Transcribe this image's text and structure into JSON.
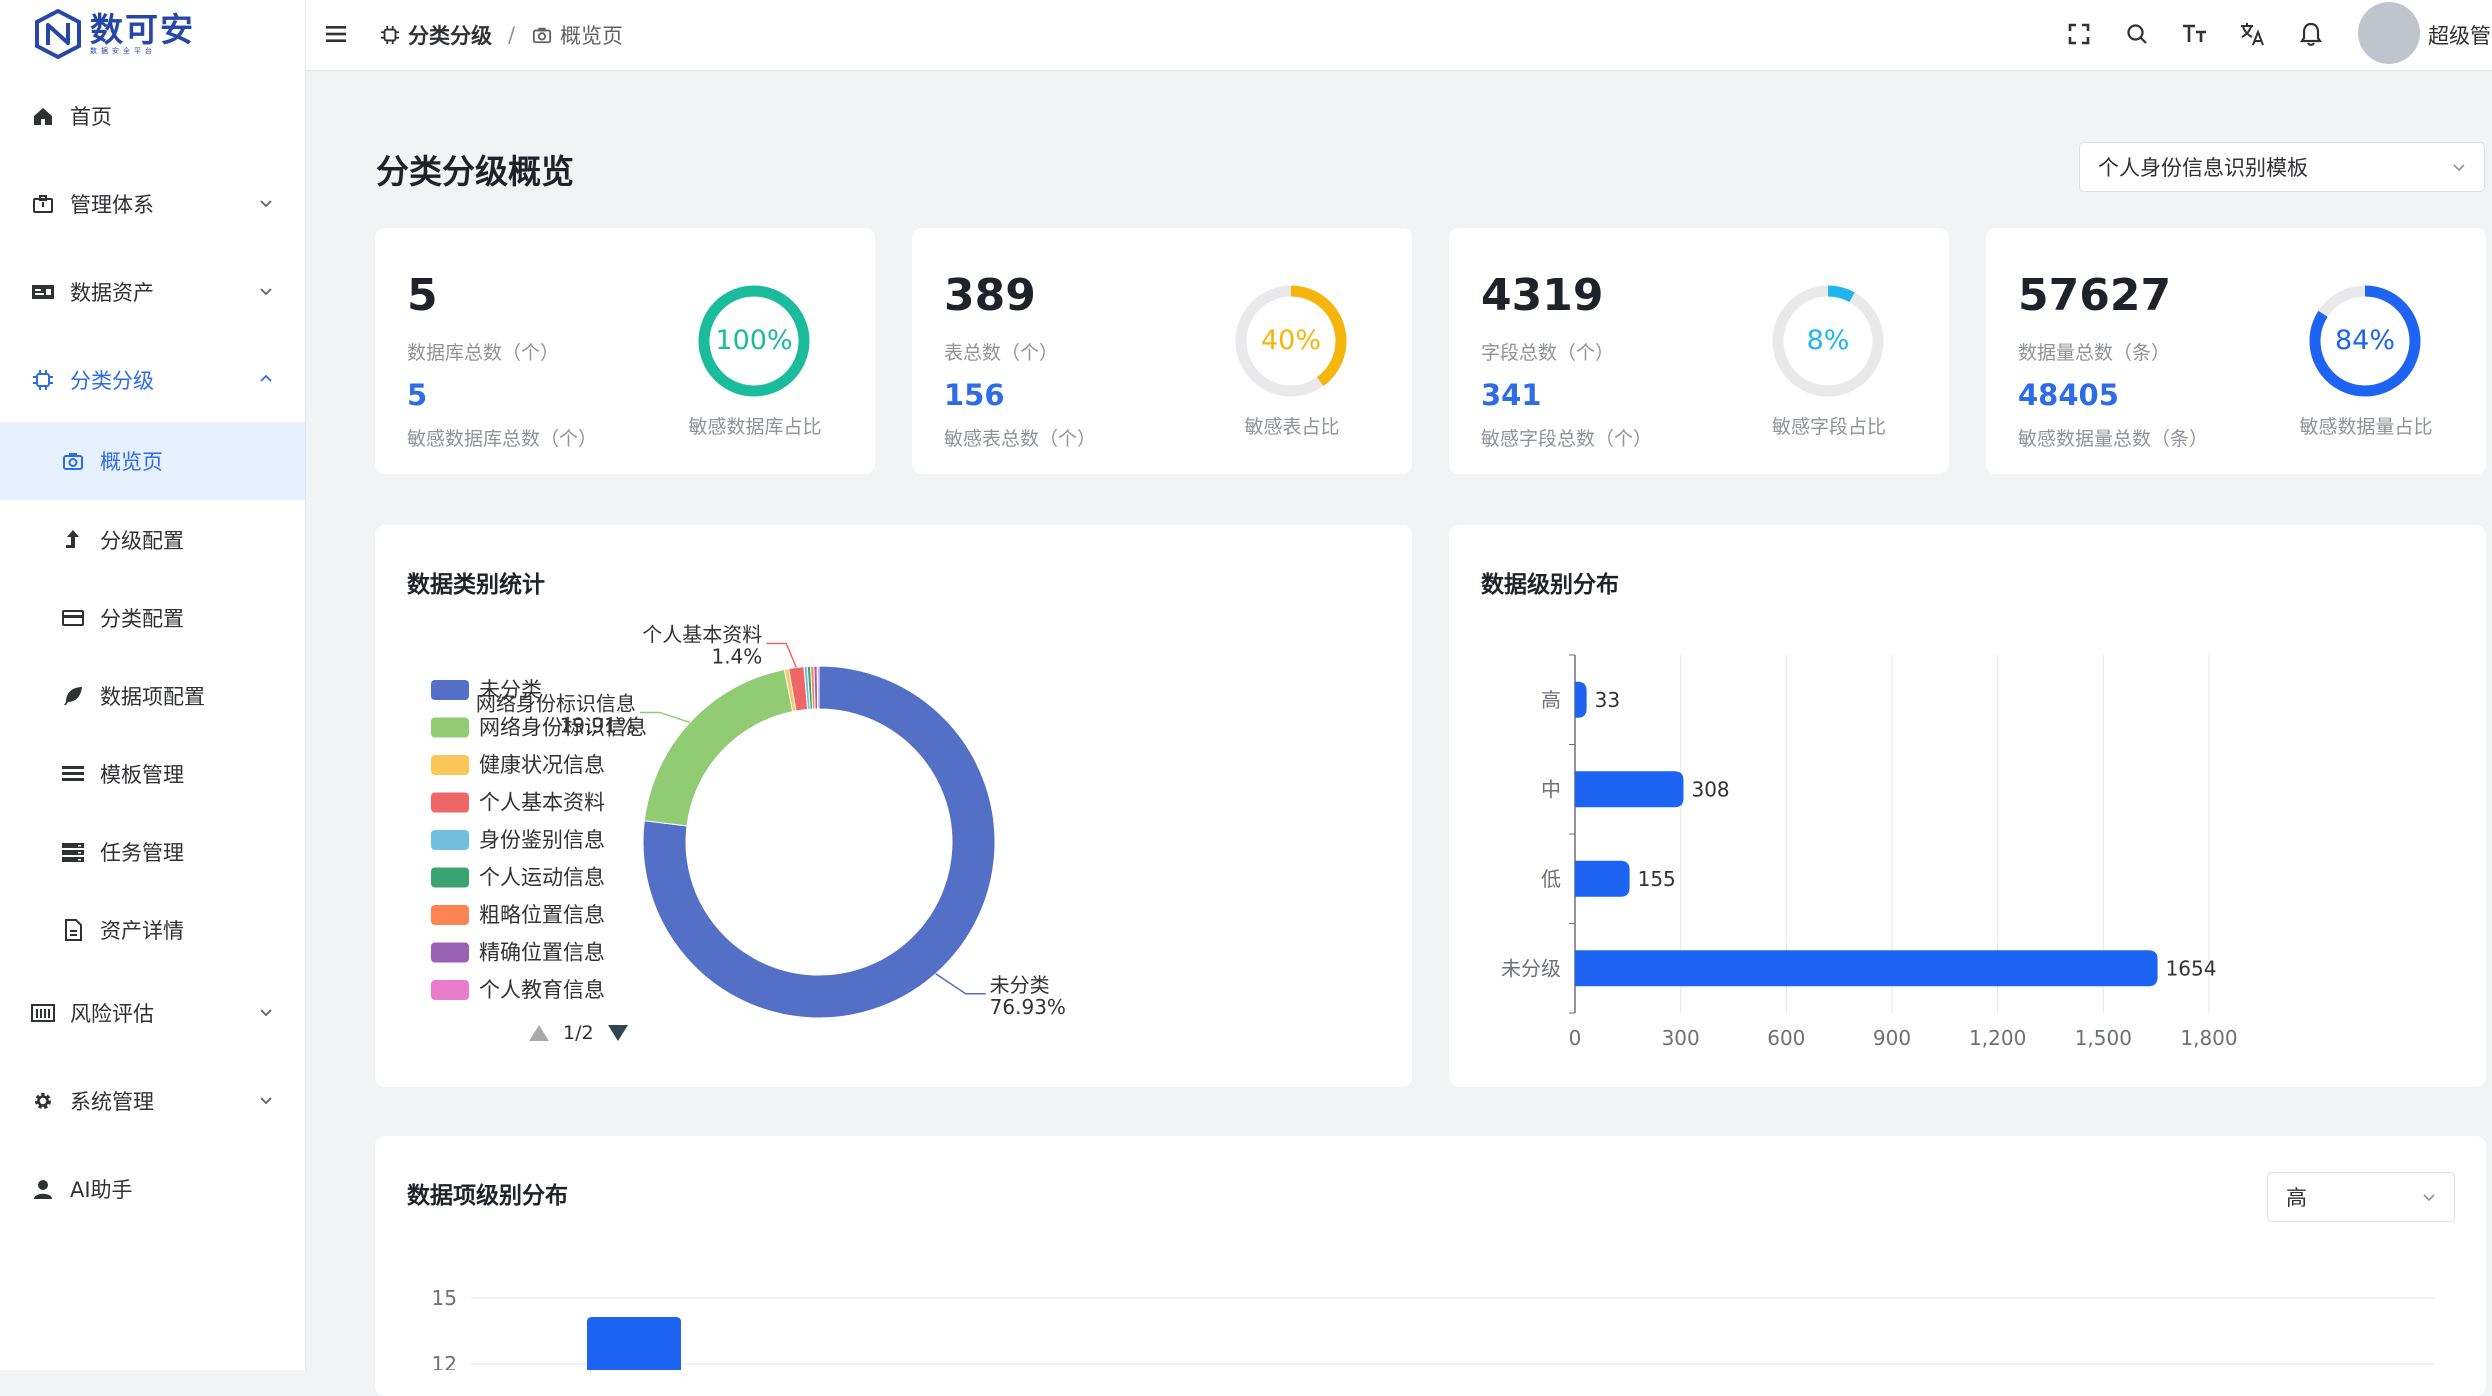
{
  "brand": {
    "title": "数可安",
    "subtitle": "数据安全平台"
  },
  "sidebar": {
    "items": [
      {
        "label": "首页",
        "icon": "home-icon"
      },
      {
        "label": "管理体系",
        "icon": "briefcase-icon"
      },
      {
        "label": "数据资产",
        "icon": "id-card-icon"
      },
      {
        "label": "分类分级",
        "icon": "chip-icon"
      },
      {
        "label": "概览页",
        "icon": "camera-icon"
      },
      {
        "label": "分级配置",
        "icon": "upload-arrow-icon"
      },
      {
        "label": "分类配置",
        "icon": "credit-card-icon"
      },
      {
        "label": "数据项配置",
        "icon": "feather-icon"
      },
      {
        "label": "模板管理",
        "icon": "list-icon"
      },
      {
        "label": "任务管理",
        "icon": "server-icon"
      },
      {
        "label": "资产详情",
        "icon": "document-icon"
      },
      {
        "label": "风险评估",
        "icon": "bar-grid-icon"
      },
      {
        "label": "系统管理",
        "icon": "gear-icon"
      },
      {
        "label": "AI助手",
        "icon": "user-icon"
      }
    ]
  },
  "header": {
    "breadcrumb": [
      {
        "label": "分类分级",
        "icon": "chip-icon"
      },
      {
        "label": "概览页",
        "icon": "camera-icon"
      }
    ],
    "separator": "/",
    "username": "超级管",
    "icons": [
      "fullscreen-icon",
      "search-icon",
      "font-size-icon",
      "translate-icon",
      "bell-icon"
    ]
  },
  "page": {
    "title": "分类分级概览",
    "template_select": "个人身份信息识别模板"
  },
  "stats": [
    {
      "total": "5",
      "total_label": "数据库总数（个）",
      "sensitive": "5",
      "sensitive_label": "敏感数据库总数（个）",
      "percent": 100,
      "percent_text": "100%",
      "ring_label": "敏感数据库占比",
      "color": "#1abc9c"
    },
    {
      "total": "389",
      "total_label": "表总数（个）",
      "sensitive": "156",
      "sensitive_label": "敏感表总数（个）",
      "percent": 40,
      "percent_text": "40%",
      "ring_label": "敏感表占比",
      "color": "#f5b50a"
    },
    {
      "total": "4319",
      "total_label": "字段总数（个）",
      "sensitive": "341",
      "sensitive_label": "敏感字段总数（个）",
      "percent": 8,
      "percent_text": "8%",
      "ring_label": "敏感字段占比",
      "color": "#1fb6f0"
    },
    {
      "total": "57627",
      "total_label": "数据量总数（条）",
      "sensitive": "48405",
      "sensitive_label": "敏感数据量总数（条）",
      "percent": 84,
      "percent_text": "84%",
      "ring_label": "敏感数据量占比",
      "color": "#1d64f2"
    }
  ],
  "category_card": {
    "title": "数据类别统计",
    "pager": "1/2"
  },
  "level_card": {
    "title": "数据级别分布"
  },
  "item_card": {
    "title": "数据项级别分布",
    "select": "高"
  },
  "chart_data": [
    {
      "type": "pie",
      "title": "数据类别统计",
      "legend_position": "left",
      "categories": [
        "未分类",
        "网络身份标识信息",
        "健康状况信息",
        "个人基本资料",
        "身份鉴别信息",
        "个人运动信息",
        "粗略位置信息",
        "精确位置信息",
        "个人教育信息"
      ],
      "values": [
        76.93,
        19.91,
        0.4,
        1.4,
        0.3,
        0.3,
        0.3,
        0.3,
        0.16
      ],
      "colors": [
        "#5470c6",
        "#91cc75",
        "#fac858",
        "#ee6666",
        "#73c0de",
        "#3ba272",
        "#fc8452",
        "#9a60b4",
        "#ea7ccc"
      ],
      "annotations": [
        {
          "name": "未分类",
          "value": "76.93%"
        },
        {
          "name": "网络身份标识信息",
          "value": "19.91%"
        },
        {
          "name": "个人基本资料",
          "value": "1.4%"
        }
      ]
    },
    {
      "type": "bar",
      "orientation": "horizontal",
      "title": "数据级别分布",
      "categories": [
        "高",
        "中",
        "低",
        "未分级"
      ],
      "values": [
        33,
        308,
        155,
        1654
      ],
      "xlim": [
        0,
        1800
      ],
      "xticks": [
        "0",
        "300",
        "600",
        "900",
        "1,200",
        "1,500",
        "1,800"
      ],
      "color": "#1d64f2",
      "grid": true
    },
    {
      "type": "bar",
      "title": "数据项级别分布",
      "yticks": [
        "15",
        "12"
      ],
      "color": "#1d64f2",
      "grid": true
    }
  ]
}
